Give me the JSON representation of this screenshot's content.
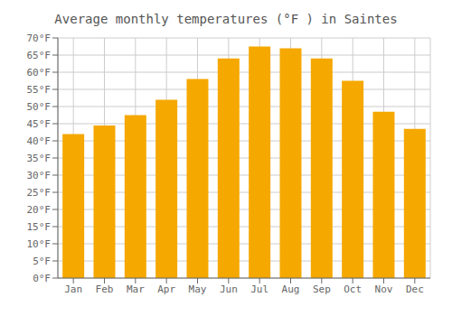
{
  "chart_data": {
    "type": "bar",
    "title": "Average monthly temperatures (°F ) in Saintes",
    "categories": [
      "Jan",
      "Feb",
      "Mar",
      "Apr",
      "May",
      "Jun",
      "Jul",
      "Aug",
      "Sep",
      "Oct",
      "Nov",
      "Dec"
    ],
    "values": [
      42.0,
      44.5,
      47.5,
      52.0,
      58.0,
      64.0,
      67.5,
      67.0,
      64.0,
      57.5,
      48.5,
      43.5
    ],
    "color": "#F5A800",
    "ylim": [
      0,
      70
    ],
    "yticks": [
      {
        "value": 0,
        "label": "0°F"
      },
      {
        "value": 5,
        "label": "5°F"
      },
      {
        "value": 10,
        "label": "10°F"
      },
      {
        "value": 15,
        "label": "15°F"
      },
      {
        "value": 20,
        "label": "20°F"
      },
      {
        "value": 25,
        "label": "25°F"
      },
      {
        "value": 30,
        "label": "30°F"
      },
      {
        "value": 35,
        "label": "35°F"
      },
      {
        "value": 40,
        "label": "40°F"
      },
      {
        "value": 45,
        "label": "45°F"
      },
      {
        "value": 50,
        "label": "50°F"
      },
      {
        "value": 55,
        "label": "55°F"
      },
      {
        "value": 60,
        "label": "60°F"
      },
      {
        "value": 65,
        "label": "65°F"
      },
      {
        "value": 70,
        "label": "70°F"
      }
    ],
    "grid": true
  }
}
